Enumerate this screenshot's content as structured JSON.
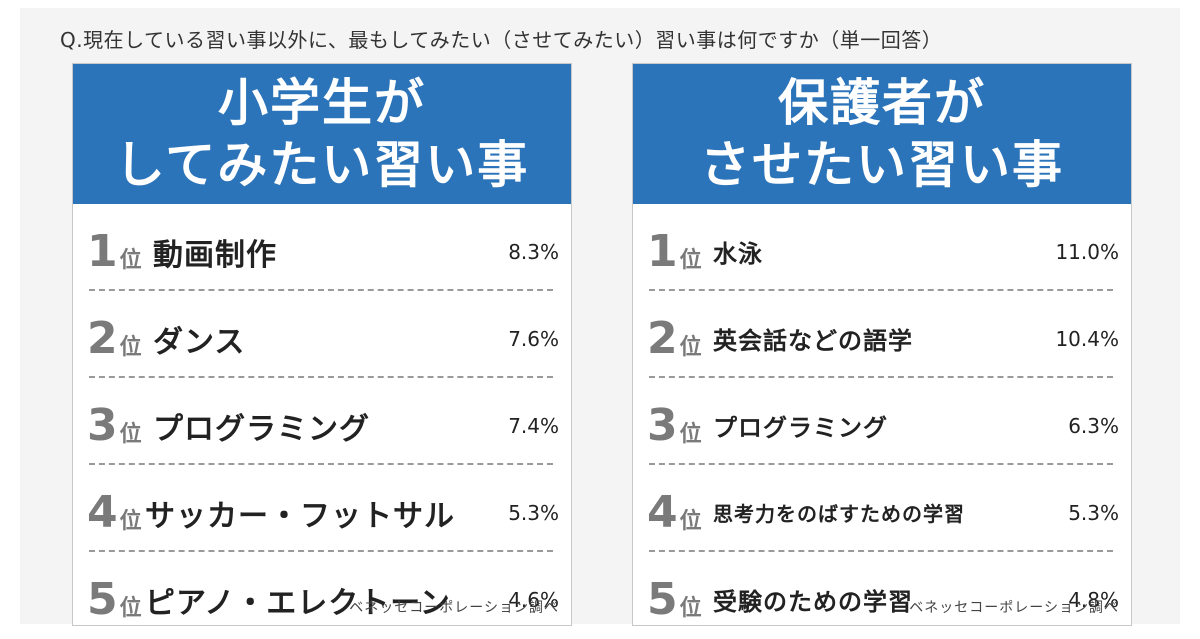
{
  "question": "Q.現在している習い事以外に、最もしてみたい（させてみたい）習い事は何ですか（単一回答）",
  "chart_data": [
    {
      "type": "table",
      "title_lines": [
        "小学生が",
        "してみたい習い事"
      ],
      "rank_suffix": "位",
      "rows": [
        {
          "rank": "1",
          "name": "動画制作",
          "value": "8.3%"
        },
        {
          "rank": "2",
          "name": "ダンス",
          "value": "7.6%"
        },
        {
          "rank": "3",
          "name": "プログラミング",
          "value": "7.4%"
        },
        {
          "rank": "4",
          "name": "サッカー・フットサル",
          "value": "5.3%"
        },
        {
          "rank": "5",
          "name": "ピアノ・エレクトーン",
          "value": "4.6%"
        }
      ],
      "credit": "ベネッセコーポレーション調べ"
    },
    {
      "type": "table",
      "title_lines": [
        "保護者が",
        "させたい習い事"
      ],
      "rank_suffix": "位",
      "rows": [
        {
          "rank": "1",
          "name": "水泳",
          "value": "11.0%"
        },
        {
          "rank": "2",
          "name": "英会話などの語学",
          "value": "10.4%"
        },
        {
          "rank": "3",
          "name": "プログラミング",
          "value": "6.3%"
        },
        {
          "rank": "4",
          "name": "思考力をのばすための学習",
          "value": "5.3%"
        },
        {
          "rank": "5",
          "name": "受験のための学習",
          "value": "4.8%"
        }
      ],
      "credit": "ベネッセコーポレーション調べ"
    }
  ],
  "colors": {
    "header_bg": "#2c74b9",
    "header_text": "#ffffff",
    "rank_text": "#7a7a7a",
    "background": "#f4f4f4"
  }
}
